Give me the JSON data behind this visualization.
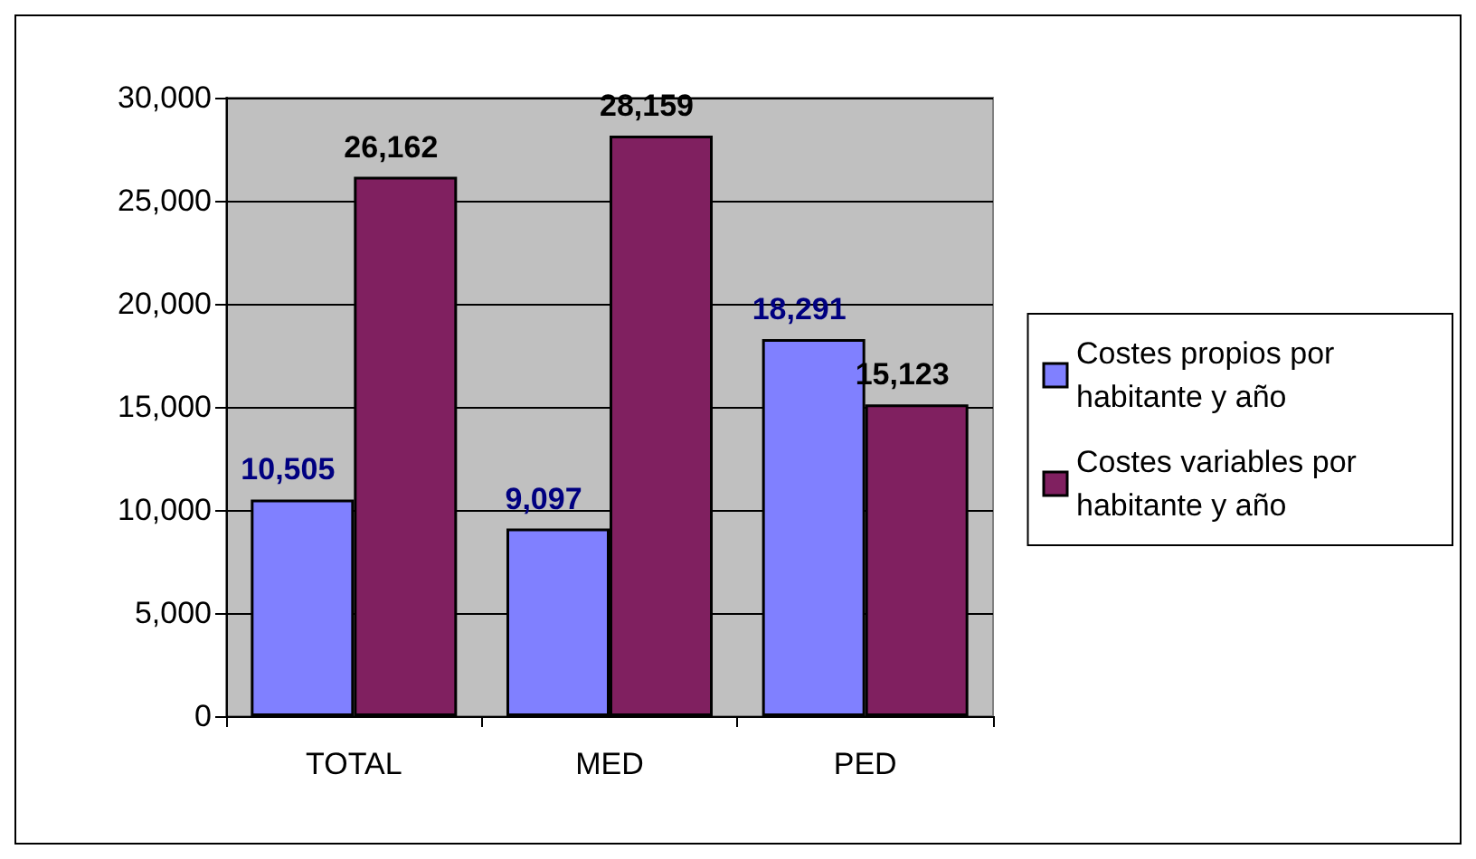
{
  "chart_data": {
    "type": "bar",
    "categories": [
      "TOTAL",
      "MED",
      "PED"
    ],
    "series": [
      {
        "name": "Costes propios por habitante y año",
        "color": "#8080ff",
        "values": [
          10505,
          9097,
          18291
        ],
        "value_labels": [
          "10,505",
          "9,097",
          "18,291"
        ]
      },
      {
        "name": "Costes variables por habitante y año",
        "color": "#802060",
        "values": [
          26162,
          28159,
          15123
        ],
        "value_labels": [
          "26,162",
          "28,159",
          "15,123"
        ]
      }
    ],
    "ylim": [
      0,
      30000
    ],
    "yticks": [
      {
        "value": 0,
        "label": "0"
      },
      {
        "value": 5000,
        "label": "5,000"
      },
      {
        "value": 10000,
        "label": "10,000"
      },
      {
        "value": 15000,
        "label": "15,000"
      },
      {
        "value": 20000,
        "label": "20,000"
      },
      {
        "value": 25000,
        "label": "25,000"
      },
      {
        "value": 30000,
        "label": "30,000"
      }
    ],
    "grid": "y",
    "legend": "right"
  }
}
